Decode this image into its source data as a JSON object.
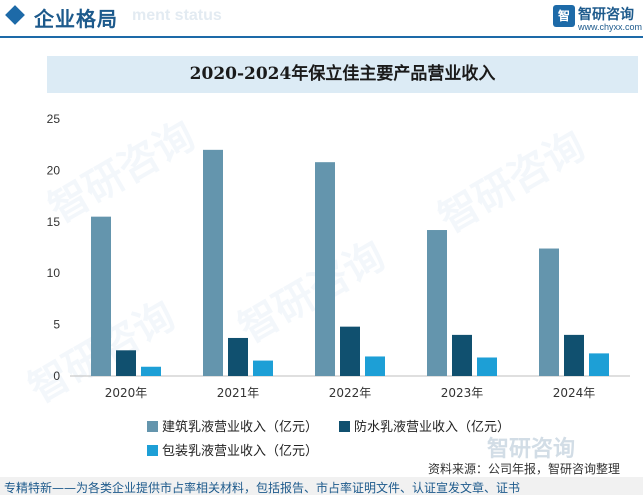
{
  "header": {
    "section_title": "企业格局",
    "section_subtitle": "ment status",
    "logo_mark": "智",
    "logo_name": "智研咨询",
    "logo_url": "www.chyxx.com"
  },
  "chart_data": {
    "type": "bar",
    "title": "2020-2024年保立佳主要产品营业收入",
    "xlabel": "",
    "ylabel": "",
    "categories": [
      "2020年",
      "2021年",
      "2022年",
      "2023年",
      "2024年"
    ],
    "ylim": [
      0,
      25
    ],
    "yticks": [
      0,
      5,
      10,
      15,
      20,
      25
    ],
    "grid": false,
    "legend_position": "bottom",
    "series": [
      {
        "name": "建筑乳液营业收入（亿元）",
        "color": "#6495ad",
        "values": [
          15.5,
          22.0,
          20.8,
          14.2,
          12.4
        ]
      },
      {
        "name": "防水乳液营业收入（亿元）",
        "color": "#10506f",
        "values": [
          2.5,
          3.7,
          4.8,
          4.0,
          4.0
        ]
      },
      {
        "name": "包装乳液营业收入（亿元）",
        "color": "#1d9fd6",
        "values": [
          0.9,
          1.5,
          1.9,
          1.8,
          2.2
        ]
      }
    ]
  },
  "watermark_text": "智研咨询",
  "source": "资料来源：公司年报，智研咨询整理",
  "footer": "专精特新——为各类企业提供市占率相关材料，包括报告、市占率证明文件、认证宣发文章、证书"
}
